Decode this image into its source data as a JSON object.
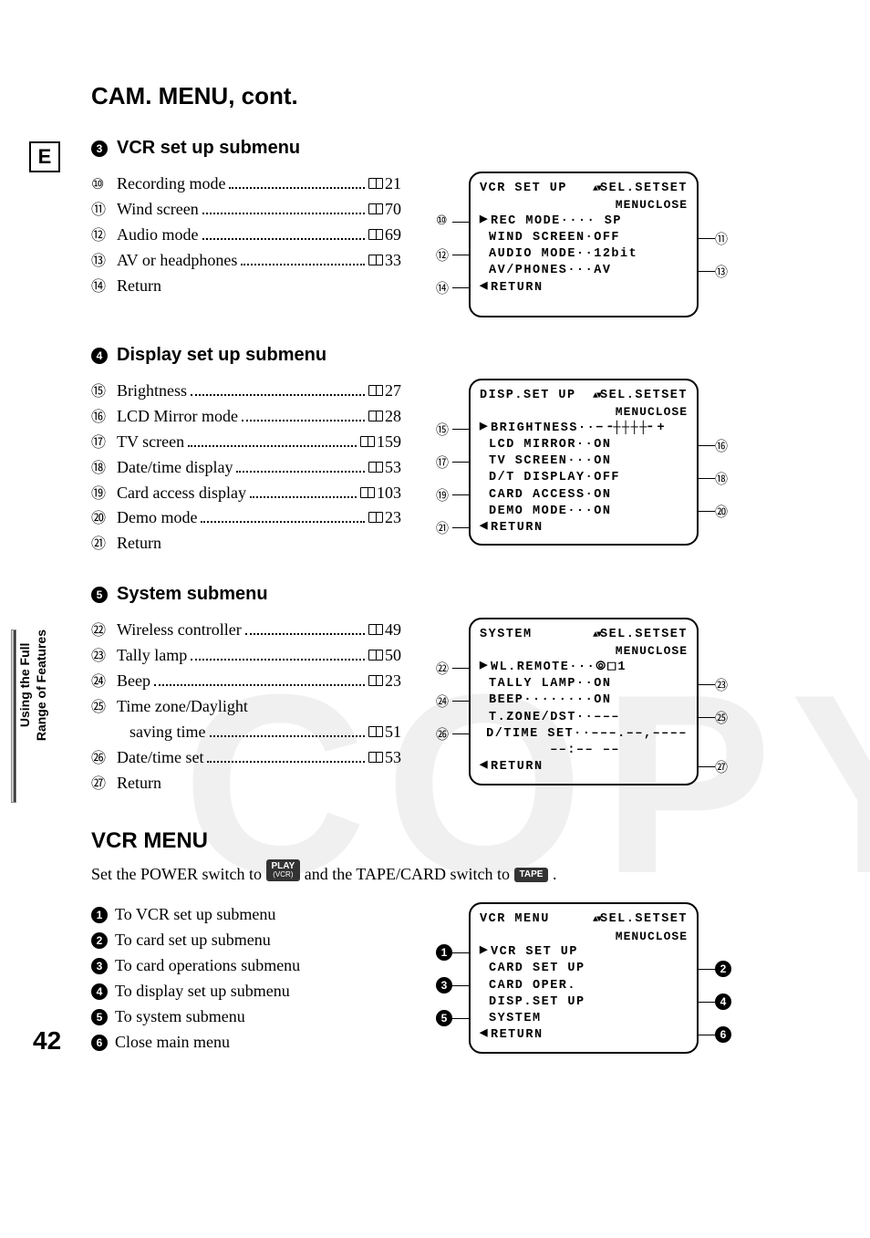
{
  "page_number": "42",
  "lang_box": "E",
  "title": "CAM. MENU, cont.",
  "sidebar": {
    "line1": "Using the Full",
    "line2": "Range of Features"
  },
  "sections": [
    {
      "num": "3",
      "title": "VCR set up submenu",
      "items": [
        {
          "glyph": "⑩",
          "label": "Recording mode",
          "page": "21"
        },
        {
          "glyph": "⑪",
          "label": "Wind screen",
          "page": "70"
        },
        {
          "glyph": "⑫",
          "label": "Audio mode",
          "page": "69"
        },
        {
          "glyph": "⑬",
          "label": "AV or headphones",
          "page": "33"
        },
        {
          "glyph": "⑭",
          "label": "Return",
          "page": null
        }
      ],
      "screen": {
        "head_left": "VCR SET UP",
        "head_right": "SEL.SETSET",
        "sub_right": "MENUCLOSE",
        "lines": [
          {
            "cursor": "▶",
            "label": "REC MODE",
            "dots": "····",
            "val": " SP",
            "callout_left": "⑩",
            "callout_right": null
          },
          {
            "cursor": " ",
            "label": "WIND SCREEN",
            "dots": "·",
            "val": "OFF",
            "callout_left": null,
            "callout_right": "⑪"
          },
          {
            "cursor": " ",
            "label": "AUDIO MODE",
            "dots": "··",
            "val": "12bit",
            "callout_left": "⑫",
            "callout_right": null
          },
          {
            "cursor": " ",
            "label": "AV/PHONES",
            "dots": "···",
            "val": "AV",
            "callout_left": null,
            "callout_right": "⑬"
          },
          {
            "cursor": "◀",
            "label": "RETURN",
            "dots": "",
            "val": "",
            "callout_left": "⑭",
            "callout_right": null
          }
        ]
      }
    },
    {
      "num": "4",
      "title": "Display set up submenu",
      "items": [
        {
          "glyph": "⑮",
          "label": "Brightness",
          "page": "27"
        },
        {
          "glyph": "⑯",
          "label": "LCD Mirror mode",
          "page": "28"
        },
        {
          "glyph": "⑰",
          "label": "TV screen",
          "page": "159"
        },
        {
          "glyph": "⑱",
          "label": "Date/time display",
          "page": "53"
        },
        {
          "glyph": "⑲",
          "label": "Card access display",
          "page": "103"
        },
        {
          "glyph": "⑳",
          "label": "Demo mode",
          "page": "23"
        },
        {
          "glyph": "㉑",
          "label": "Return",
          "page": null
        }
      ],
      "screen": {
        "head_left": "DISP.SET UP",
        "head_right": "SEL.SETSET",
        "sub_right": "MENUCLOSE",
        "lines": [
          {
            "cursor": "▶",
            "label": "BRIGHTNESS",
            "dots": "··",
            "val": "−╶┼┼┼┼╴+",
            "callout_left": "⑮",
            "callout_right": null
          },
          {
            "cursor": " ",
            "label": "LCD MIRROR",
            "dots": "··",
            "val": "ON",
            "callout_left": null,
            "callout_right": "⑯"
          },
          {
            "cursor": " ",
            "label": "TV SCREEN",
            "dots": "···",
            "val": "ON",
            "callout_left": "⑰",
            "callout_right": null
          },
          {
            "cursor": " ",
            "label": "D/T DISPLAY",
            "dots": "·",
            "val": "OFF",
            "callout_left": null,
            "callout_right": "⑱"
          },
          {
            "cursor": " ",
            "label": "CARD ACCESS",
            "dots": "·",
            "val": "ON",
            "callout_left": "⑲",
            "callout_right": null
          },
          {
            "cursor": " ",
            "label": "DEMO MODE",
            "dots": "···",
            "val": "ON",
            "callout_left": null,
            "callout_right": "⑳"
          },
          {
            "cursor": "◀",
            "label": "RETURN",
            "dots": "",
            "val": "",
            "callout_left": "㉑",
            "callout_right": null
          }
        ]
      }
    },
    {
      "num": "5",
      "title": "System submenu",
      "items": [
        {
          "glyph": "㉒",
          "label": "Wireless controller",
          "page": "49"
        },
        {
          "glyph": "㉓",
          "label": "Tally lamp",
          "page": "50"
        },
        {
          "glyph": "㉔",
          "label": "Beep",
          "page": "23"
        },
        {
          "glyph": "㉕",
          "label": "Time zone/Daylight",
          "label2": "saving time",
          "page": "51"
        },
        {
          "glyph": "㉖",
          "label": "Date/time set",
          "page": "53"
        },
        {
          "glyph": "㉗",
          "label": "Return",
          "page": null
        }
      ],
      "screen": {
        "head_left": "SYSTEM",
        "head_right": "SEL.SETSET",
        "sub_right": "MENUCLOSE",
        "lines": [
          {
            "cursor": "▶",
            "label": "WL.REMOTE",
            "dots": "···",
            "val": "⦾⬚1",
            "callout_left": "㉒",
            "callout_right": null
          },
          {
            "cursor": " ",
            "label": "TALLY LAMP",
            "dots": "··",
            "val": "ON",
            "callout_left": null,
            "callout_right": "㉓"
          },
          {
            "cursor": " ",
            "label": "BEEP",
            "dots": "········",
            "val": "ON",
            "callout_left": "㉔",
            "callout_right": null
          },
          {
            "cursor": " ",
            "label": "T.ZONE/DST",
            "dots": "··",
            "val": "–––",
            "callout_left": null,
            "callout_right": "㉕"
          },
          {
            "cursor": " ",
            "label": "D/TIME SET",
            "dots": "··",
            "val": "–––.––,––––",
            "callout_left": "㉖",
            "callout_right": null
          },
          {
            "cursor": " ",
            "label": "",
            "dots": "",
            "val": "       ––:–– ––",
            "callout_left": null,
            "callout_right": null
          },
          {
            "cursor": "◀",
            "label": "RETURN",
            "dots": "",
            "val": "",
            "callout_left": null,
            "callout_right": "㉗"
          }
        ]
      }
    }
  ],
  "vcr": {
    "title": "VCR MENU",
    "sub_prefix": "Set the POWER switch to ",
    "pill1_top": "PLAY",
    "pill1_bot": "(VCR)",
    "sub_mid": " and the TAPE/CARD switch to ",
    "pill2": "TAPE",
    "sub_suffix": ".",
    "items": [
      {
        "num": "1",
        "label": "To VCR set up submenu"
      },
      {
        "num": "2",
        "label": "To card set up submenu"
      },
      {
        "num": "3",
        "label": "To card operations submenu"
      },
      {
        "num": "4",
        "label": "To display set up submenu"
      },
      {
        "num": "5",
        "label": "To system submenu"
      },
      {
        "num": "6",
        "label": "Close main menu"
      }
    ],
    "screen": {
      "head_left": "VCR MENU",
      "head_right": "SEL.SETSET",
      "sub_right": "MENUCLOSE",
      "lines": [
        {
          "cursor": "▶",
          "label": "VCR SET UP",
          "callout_left": "1",
          "callout_right": null
        },
        {
          "cursor": " ",
          "label": "CARD SET UP",
          "callout_left": null,
          "callout_right": "2"
        },
        {
          "cursor": " ",
          "label": "CARD OPER.",
          "callout_left": "3",
          "callout_right": null
        },
        {
          "cursor": " ",
          "label": "DISP.SET UP",
          "callout_left": null,
          "callout_right": "4"
        },
        {
          "cursor": " ",
          "label": "SYSTEM",
          "callout_left": "5",
          "callout_right": null
        },
        {
          "cursor": "◀",
          "label": "RETURN",
          "callout_left": null,
          "callout_right": "6"
        }
      ]
    }
  },
  "watermark": "COPY"
}
